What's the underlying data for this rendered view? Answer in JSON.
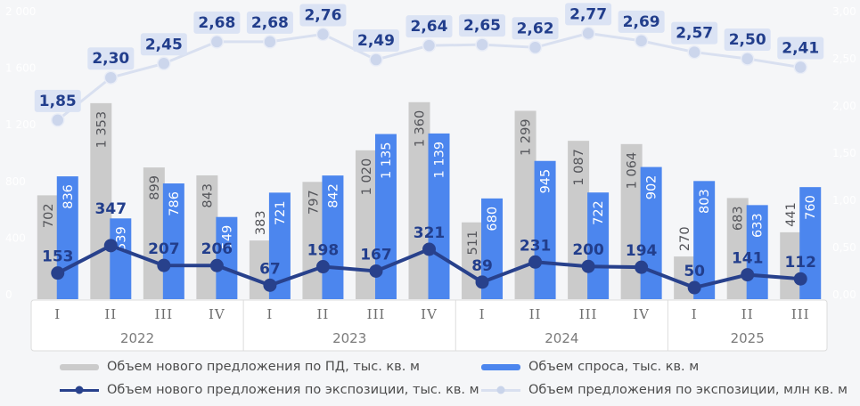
{
  "chart_data": {
    "type": "combo-bar-line",
    "x_groups": [
      {
        "year": "2022",
        "quarters": [
          "I",
          "II",
          "III",
          "IV"
        ]
      },
      {
        "year": "2023",
        "quarters": [
          "I",
          "II",
          "III",
          "IV"
        ]
      },
      {
        "year": "2024",
        "quarters": [
          "I",
          "II",
          "III",
          "IV"
        ]
      },
      {
        "year": "2025",
        "quarters": [
          "I",
          "II",
          "III"
        ]
      }
    ],
    "left_axis": {
      "min": 0,
      "max": 2000,
      "step": 400,
      "tick_labels": [
        "0",
        "400",
        "800",
        "1 200",
        "1 600",
        "2 000"
      ]
    },
    "right_axis": {
      "min": 0,
      "max": 3,
      "step": 0.5,
      "tick_labels": [
        "0,00",
        "0,50",
        "1,00",
        "1,50",
        "2,00",
        "2,50",
        "3,00"
      ]
    },
    "series": [
      {
        "id": "new-supply-pd",
        "name": "Объем нового предложения по ПД, тыс. кв. м",
        "type": "bar",
        "color": "#cbcbcb",
        "label_color": "#54555a",
        "values": [
          702,
          1353,
          899,
          843,
          383,
          797,
          1020,
          1360,
          511,
          1299,
          1087,
          1064,
          270,
          683,
          441
        ]
      },
      {
        "id": "demand",
        "name": "Объем спроса, тыс. кв. м",
        "type": "bar",
        "color": "#4c86ee",
        "label_color": "#ffffff",
        "values": [
          836,
          539,
          786,
          549,
          721,
          842,
          1135,
          1139,
          680,
          945,
          722,
          902,
          803,
          633,
          760
        ]
      },
      {
        "id": "new-supply-expo",
        "name": "Объем нового предложения по экспозиции, тыс. кв. м",
        "type": "line",
        "axis": "left",
        "color": "#28418c",
        "label_color": "#223e8c",
        "values": [
          153,
          347,
          207,
          206,
          67,
          198,
          167,
          321,
          89,
          231,
          200,
          194,
          50,
          141,
          112
        ]
      },
      {
        "id": "supply-expo",
        "name": "Объем предложения по экспозиции, млн кв. м",
        "type": "line",
        "axis": "right",
        "color": "#d9e0f0",
        "marker_color": "#ccd6ec",
        "label_color": "#223e8c",
        "label_bg": "#dbe3f4",
        "values": [
          1.85,
          2.3,
          2.45,
          2.68,
          2.68,
          2.76,
          2.49,
          2.64,
          2.65,
          2.62,
          2.77,
          2.69,
          2.57,
          2.5,
          2.41
        ]
      }
    ]
  },
  "legend": {
    "items": [
      {
        "swatch": "bar-gray",
        "label": "Объем нового предложения по ПД, тыс. кв. м"
      },
      {
        "swatch": "line-navy",
        "label": "Объем нового предложения по экспозиции, тыс. кв. м"
      },
      {
        "swatch": "bar-blue",
        "label": "Объем спроса, тыс. кв. м"
      },
      {
        "swatch": "line-pale",
        "label": "Объем предложения по экспозиции, млн кв. м"
      }
    ]
  }
}
